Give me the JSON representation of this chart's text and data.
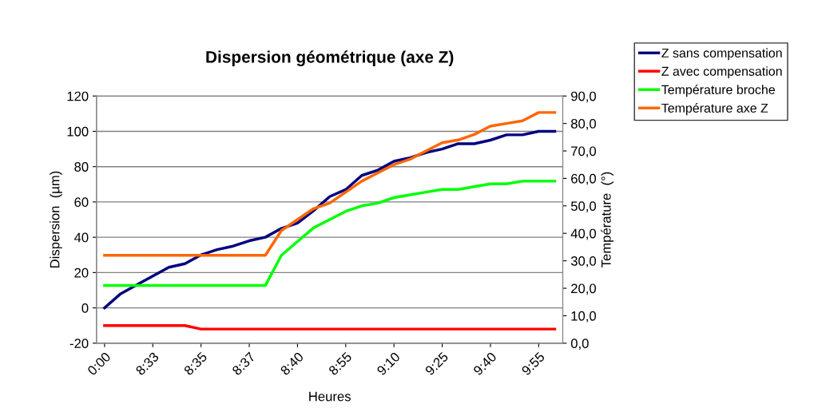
{
  "chart_data": {
    "type": "line",
    "title": "Dispersion géométrique (axe Z)",
    "xlabel": "Heures",
    "ylabel": "Dispersion  (µm)",
    "y2label": "Température  (°)",
    "categories": [
      "0:00",
      null,
      null,
      "8:33",
      null,
      null,
      "8:35",
      null,
      null,
      "8:37",
      null,
      null,
      "8:40",
      null,
      null,
      "8:55",
      null,
      null,
      "9:10",
      null,
      null,
      "9:25",
      null,
      null,
      "9:40",
      null,
      null,
      "9:55",
      null
    ],
    "series": [
      {
        "name": "Z sans compensation",
        "color": "#000080",
        "values": [
          0,
          8,
          13,
          18,
          23,
          25,
          30,
          33,
          35,
          38,
          40,
          45,
          48,
          55,
          63,
          67,
          75,
          78,
          83,
          85,
          88,
          90,
          93,
          93,
          95,
          98,
          98,
          100,
          100
        ]
      },
      {
        "name": "Z avec compensation",
        "color": "#ff0000",
        "values": [
          -10,
          -10,
          -10,
          -10,
          -10,
          -10,
          -12,
          -12,
          -12,
          -12,
          -12,
          -12,
          -12,
          -12,
          -12,
          -12,
          -12,
          -12,
          -12,
          -12,
          -12,
          -12,
          -12,
          -12,
          -12,
          -12,
          -12,
          -12,
          -12
        ]
      },
      {
        "name": "Température broche",
        "color": "#00ff00",
        "axis": "y2",
        "values": [
          21,
          21,
          21,
          21,
          21,
          21,
          21,
          21,
          21,
          21,
          21,
          32,
          37,
          42,
          45,
          48,
          50,
          51,
          53,
          54,
          55,
          56,
          56,
          57,
          58,
          58,
          59,
          59,
          59
        ]
      },
      {
        "name": "Température axe Z",
        "color": "#ff6600",
        "axis": "y2",
        "values": [
          32,
          32,
          32,
          32,
          32,
          32,
          32,
          32,
          32,
          32,
          32,
          41,
          45,
          49,
          51,
          55,
          59,
          62,
          65,
          67,
          70,
          73,
          74,
          76,
          79,
          80,
          81,
          84,
          84
        ]
      }
    ],
    "ylim": [
      -20,
      120
    ],
    "yticks": [
      -20,
      0,
      20,
      40,
      60,
      80,
      100,
      120
    ],
    "y2lim": [
      0,
      90
    ],
    "y2ticks": [
      {
        "value": 0,
        "label": "0,0"
      },
      {
        "value": 10,
        "label": "10,0"
      },
      {
        "value": 20,
        "label": "20,0"
      },
      {
        "value": 30,
        "label": "30,0"
      },
      {
        "value": 40,
        "label": "40,0"
      },
      {
        "value": 50,
        "label": "50,0"
      },
      {
        "value": 60,
        "label": "60,0"
      },
      {
        "value": 70,
        "label": "70,0"
      },
      {
        "value": 80,
        "label": "80,0"
      },
      {
        "value": 90,
        "label": "90,0"
      }
    ],
    "grid": "y",
    "legend": "top right",
    "marker": "none",
    "line_style": "solid"
  }
}
